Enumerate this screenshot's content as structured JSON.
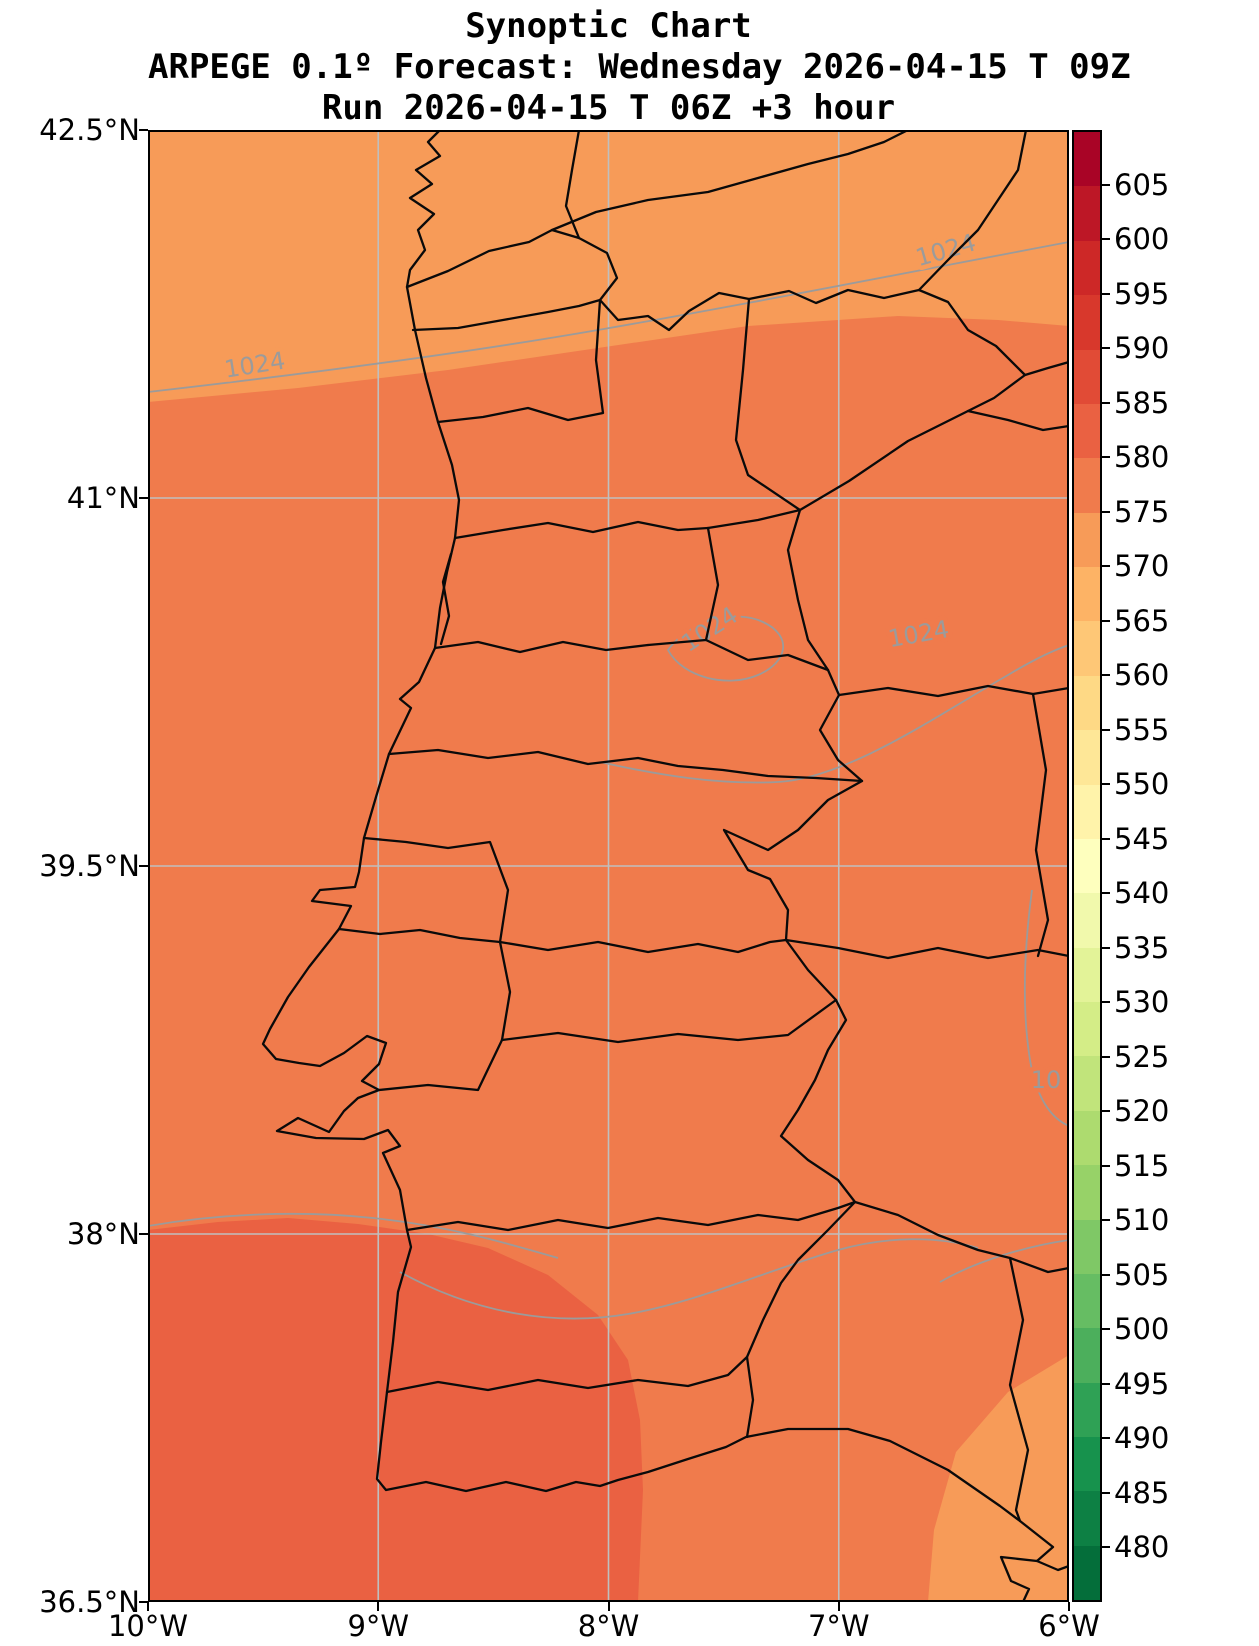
{
  "titles": {
    "line1": "Synoptic Chart",
    "line2": "ARPEGE 0.1º Forecast: Wednesday 2026-04-15 T 09Z",
    "line3": "Run 2026-04-15 T 06Z +3 hour"
  },
  "axes": {
    "x_ticks": [
      "10°W",
      "9°W",
      "8°W",
      "7°W",
      "6°W"
    ],
    "y_ticks": [
      "42.5°N",
      "41°N",
      "39.5°N",
      "38°N",
      "36.5°N"
    ]
  },
  "colorbar": {
    "tick_labels": [
      605,
      600,
      595,
      590,
      585,
      580,
      575,
      570,
      565,
      560,
      555,
      550,
      545,
      540,
      535,
      530,
      525,
      520,
      515,
      510,
      505,
      500,
      495,
      490,
      485,
      480
    ],
    "band_colors": [
      "#046e3a",
      "#0d8044",
      "#17924d",
      "#2fa155",
      "#4caf5c",
      "#66bd63",
      "#7fc866",
      "#97d268",
      "#addb6f",
      "#c1e47b",
      "#d4ed87",
      "#e3f398",
      "#f1f9ac",
      "#feffbe",
      "#fff3aa",
      "#fee797",
      "#fed985",
      "#fec776",
      "#fdb365",
      "#f79b58",
      "#f07b4c",
      "#ea6142",
      "#e14b36",
      "#d8382c",
      "#cd2827",
      "#bd1726",
      "#a90426"
    ]
  },
  "map": {
    "isobar_label": "1024",
    "isobar_label_partial": "10",
    "colors": {
      "light": "#f79b58",
      "main": "#f07b4c",
      "deep": "#ea6142",
      "grid": "#bfbfbf",
      "contour": "#9b9b9b",
      "boundary": "#0a0a0a"
    }
  },
  "chart_data": {
    "type": "heatmap",
    "subtype": "filled contour synoptic weather map over Portugal / western Iberia",
    "title": "Synoptic Chart",
    "subtitle": "ARPEGE 0.1º Forecast: Wednesday 2026-04-15 T 09Z",
    "run_line": "Run 2026-04-15 T 06Z +3 hour",
    "model": "ARPEGE 0.1º",
    "valid_time": "Wednesday 2026-04-15 T 09Z",
    "run_time": "2026-04-15 T 06Z",
    "lead_hours": 3,
    "x": {
      "label": "longitude",
      "ticks": [
        "10°W",
        "9°W",
        "8°W",
        "7°W",
        "6°W"
      ],
      "range_deg": [
        -10,
        -6
      ]
    },
    "y": {
      "label": "latitude",
      "ticks": [
        "42.5°N",
        "41°N",
        "39.5°N",
        "38°N",
        "36.5°N"
      ],
      "range_deg": [
        36.5,
        42.5
      ]
    },
    "grid": true,
    "legend_position": "none",
    "colorbar": {
      "orientation": "vertical",
      "position": "right",
      "tick_values": [
        480,
        485,
        490,
        495,
        500,
        505,
        510,
        515,
        520,
        525,
        530,
        535,
        540,
        545,
        550,
        555,
        560,
        565,
        570,
        575,
        580,
        585,
        590,
        595,
        600,
        605
      ],
      "band_step": 5,
      "range": [
        475,
        610
      ],
      "colormap": "green-yellow-orange-red (RdYlGn reversed), discrete 5-unit bands"
    },
    "filled_field_regions": [
      {
        "region": "northwest corner above diagonal boundary",
        "value_band": [
          570,
          575
        ]
      },
      {
        "region": "main map area",
        "value_band": [
          575,
          580
        ]
      },
      {
        "region": "southwest area below ~38°N",
        "value_band": [
          580,
          585
        ]
      },
      {
        "region": "southeast corner",
        "value_band": [
          570,
          575
        ]
      }
    ],
    "overlay_contours": {
      "field": "isobars",
      "labels_hPa": [
        1024,
        1024,
        1024,
        1024
      ],
      "partial_label_at_right_edge": "10"
    },
    "map_layers": [
      "coastline",
      "Portugal-Spain border",
      "district and province boundaries"
    ]
  }
}
